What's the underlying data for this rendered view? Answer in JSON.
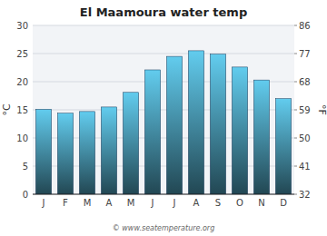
{
  "chart_data": {
    "type": "bar",
    "title": "El Maamoura water temp",
    "categories": [
      "J",
      "F",
      "M",
      "A",
      "M",
      "J",
      "J",
      "A",
      "S",
      "O",
      "N",
      "D"
    ],
    "values": [
      15.1,
      14.4,
      14.7,
      15.5,
      18.1,
      22.1,
      24.5,
      25.5,
      24.9,
      22.6,
      20.3,
      17.0
    ],
    "color": "#62ccee",
    "ylabel": "°C",
    "y2label": "°F",
    "ylim": [
      0,
      30
    ],
    "yticks": [
      0,
      5,
      10,
      15,
      20,
      25,
      30
    ],
    "y2lim": [
      32,
      86
    ],
    "y2ticks": [
      32,
      41,
      50,
      59,
      68,
      77,
      86
    ],
    "grid": true,
    "annotations": [
      "© www.seatemperature.org"
    ]
  }
}
